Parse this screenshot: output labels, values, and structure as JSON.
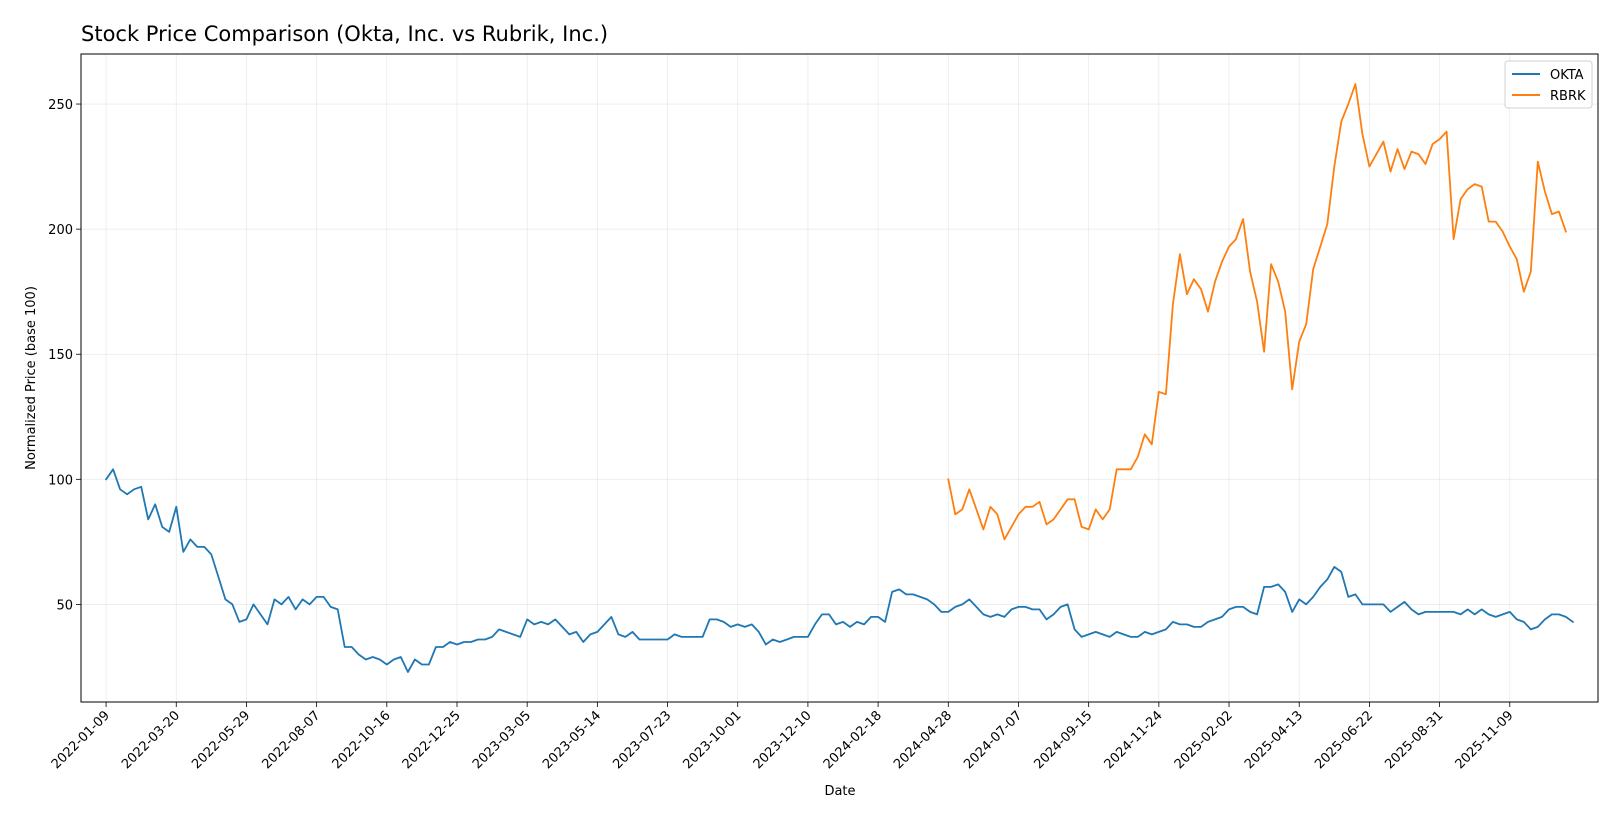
{
  "chart_data": {
    "type": "line",
    "title": "Stock Price Comparison (Okta, Inc. vs Rubrik, Inc.)",
    "xlabel": "Date",
    "ylabel": "Normalized Price (base 100)",
    "ylim": [
      11,
      270
    ],
    "xlim": [
      "2021-12-15",
      "2026-02-05"
    ],
    "yticks": [
      50,
      100,
      150,
      200,
      250
    ],
    "xticks": [
      "2022-01-09",
      "2022-03-20",
      "2022-05-29",
      "2022-08-07",
      "2022-10-16",
      "2022-12-25",
      "2023-03-05",
      "2023-05-14",
      "2023-07-23",
      "2023-10-01",
      "2023-12-10",
      "2024-02-18",
      "2024-04-28",
      "2024-07-07",
      "2024-09-15",
      "2024-11-24",
      "2025-02-02",
      "2025-04-13",
      "2025-06-22",
      "2025-08-31",
      "2025-11-09"
    ],
    "grid": true,
    "legend_position": "top-right",
    "series": [
      {
        "name": "OKTA",
        "color": "#1f77b4",
        "start": "2022-01-09",
        "step_days": 7,
        "values": [
          100,
          104,
          96,
          94,
          96,
          97,
          84,
          90,
          81,
          79,
          89,
          71,
          76,
          73,
          73,
          70,
          61,
          52,
          50,
          43,
          44,
          50,
          46,
          42,
          52,
          50,
          53,
          48,
          52,
          50,
          53,
          53,
          49,
          48,
          33,
          33,
          30,
          28,
          29,
          28,
          26,
          28,
          29,
          23,
          28,
          26,
          26,
          33,
          33,
          35,
          34,
          35,
          35,
          36,
          36,
          37,
          40,
          39,
          38,
          37,
          44,
          42,
          43,
          42,
          44,
          41,
          38,
          39,
          35,
          38,
          39,
          42,
          45,
          38,
          37,
          39,
          36,
          36,
          36,
          36,
          36,
          38,
          37,
          37,
          37,
          37,
          44,
          44,
          43,
          41,
          42,
          41,
          42,
          39,
          34,
          36,
          35,
          36,
          37,
          37,
          37,
          42,
          46,
          46,
          42,
          43,
          41,
          43,
          42,
          45,
          45,
          43,
          55,
          56,
          54,
          54,
          53,
          52,
          50,
          47,
          47,
          49,
          50,
          52,
          49,
          46,
          45,
          46,
          45,
          48,
          49,
          49,
          48,
          48,
          44,
          46,
          49,
          50,
          40,
          37,
          38,
          39,
          38,
          37,
          39,
          38,
          37,
          37,
          39,
          38,
          39,
          40,
          43,
          42,
          42,
          41,
          41,
          43,
          44,
          45,
          48,
          49,
          49,
          47,
          46,
          57,
          57,
          58,
          55,
          47,
          52,
          50,
          53,
          57,
          60,
          65,
          63,
          53,
          54,
          50,
          50,
          50,
          50,
          47,
          49,
          51,
          48,
          46,
          47,
          47,
          47,
          47,
          47,
          46,
          48,
          46,
          48,
          46,
          45,
          46,
          47,
          44,
          43,
          40,
          41,
          44,
          46,
          46,
          45,
          43
        ]
      },
      {
        "name": "RBRK",
        "color": "#ff7f0e",
        "start": "2024-04-28",
        "step_days": 7,
        "values": [
          100,
          86,
          88,
          96,
          88,
          80,
          89,
          86,
          76,
          81,
          86,
          89,
          89,
          91,
          82,
          84,
          88,
          92,
          92,
          81,
          80,
          88,
          84,
          88,
          104,
          104,
          104,
          109,
          118,
          114,
          135,
          134,
          170,
          190,
          174,
          180,
          176,
          167,
          179,
          187,
          193,
          196,
          204,
          183,
          171,
          151,
          186,
          179,
          167,
          136,
          155,
          162,
          184,
          193,
          202,
          225,
          243,
          250,
          258,
          238,
          225,
          230,
          235,
          223,
          232,
          224,
          231,
          230,
          226,
          234,
          236,
          239,
          196,
          212,
          216,
          218,
          217,
          203,
          203,
          199,
          193,
          188,
          175,
          183,
          227,
          215,
          206,
          207,
          199
        ]
      }
    ]
  }
}
